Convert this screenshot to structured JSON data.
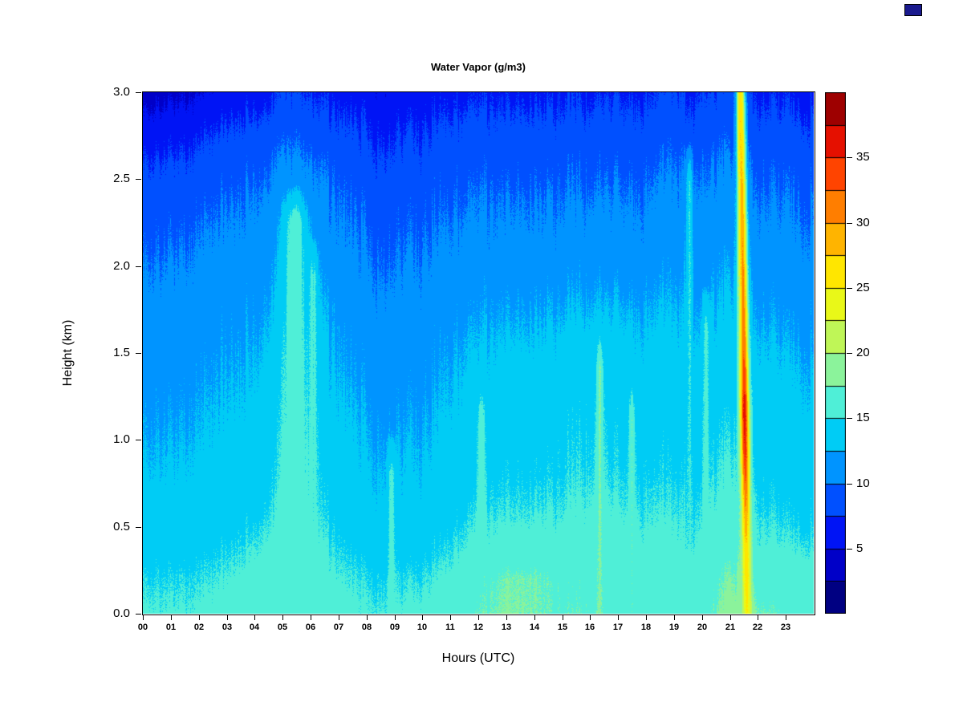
{
  "figure": {
    "background": "#ffffff"
  },
  "chart_data": {
    "type": "heatmap",
    "title": "Water Vapor (g/m3)",
    "xlabel": "Hours (UTC)",
    "ylabel": "Height (km)",
    "x_range_hours": [
      0,
      24
    ],
    "y_range_km": [
      0,
      3
    ],
    "x_tick_labels": [
      "00",
      "01",
      "02",
      "03",
      "04",
      "05",
      "06",
      "07",
      "08",
      "09",
      "10",
      "11",
      "12",
      "13",
      "14",
      "15",
      "16",
      "17",
      "18",
      "19",
      "20",
      "21",
      "22",
      "23"
    ],
    "y_tick_values": [
      0,
      0.5,
      1.0,
      1.5,
      2.0,
      2.5,
      3.0
    ],
    "y_tick_labels": [
      "0.0",
      "0.5",
      "1.0",
      "1.5",
      "2.0",
      "2.5",
      "3.0"
    ],
    "colorbar": {
      "min": 0,
      "max": 40,
      "bin_size": 2.5,
      "tick_values": [
        5,
        10,
        15,
        20,
        25,
        30,
        35
      ],
      "tick_labels": [
        "5",
        "10",
        "15",
        "20",
        "25",
        "30",
        "35"
      ],
      "colors": [
        "#000082",
        "#0000C8",
        "#0014F5",
        "#0050FF",
        "#0094FF",
        "#00CCF5",
        "#4FEFD7",
        "#8BF39B",
        "#BFF657",
        "#E9F818",
        "#FFE600",
        "#FFB400",
        "#FF7E00",
        "#FF4400",
        "#E51000",
        "#9E0000"
      ]
    },
    "grid": {
      "hours": [
        0,
        1,
        2,
        3,
        4,
        5,
        6,
        7,
        8,
        9,
        10,
        11,
        12,
        13,
        14,
        15,
        16,
        17,
        18,
        19,
        20,
        21,
        22,
        23,
        24
      ],
      "heights_km": [
        0.0,
        0.2,
        0.4,
        0.6,
        0.8,
        1.0,
        1.2,
        1.4,
        1.6,
        1.8,
        2.0,
        2.2,
        2.4,
        2.6,
        2.8,
        3.0
      ],
      "values": [
        [
          15.5,
          15.5,
          15.5,
          15.8,
          16.3,
          16.8,
          16.4,
          15.8,
          15.4,
          15.4,
          15.8,
          16.2,
          17.2,
          17.8,
          17.6,
          17.2,
          17.2,
          16.8,
          16.6,
          16.6,
          16.4,
          18.5,
          17.6,
          17.0,
          16.6
        ],
        [
          14.9,
          14.9,
          15.0,
          15.2,
          15.9,
          16.6,
          16.2,
          15.4,
          14.9,
          14.8,
          15.0,
          15.6,
          16.6,
          17.6,
          17.6,
          16.9,
          16.9,
          16.5,
          16.2,
          16.1,
          15.9,
          17.8,
          16.6,
          16.2,
          16.0
        ],
        [
          14.1,
          14.1,
          14.2,
          14.5,
          15.1,
          16.2,
          15.8,
          14.7,
          14.1,
          13.9,
          14.2,
          14.8,
          15.5,
          15.9,
          15.9,
          15.9,
          16.1,
          15.9,
          15.6,
          15.5,
          15.3,
          16.8,
          15.6,
          15.2,
          15.0
        ],
        [
          13.5,
          13.5,
          13.6,
          13.8,
          14.3,
          15.6,
          15.2,
          14.1,
          13.4,
          13.2,
          13.5,
          14.0,
          14.8,
          15.1,
          15.1,
          15.3,
          15.6,
          15.3,
          15.0,
          15.0,
          14.8,
          16.1,
          15.0,
          14.5,
          14.3
        ],
        [
          13.0,
          13.0,
          13.2,
          13.4,
          13.9,
          15.1,
          14.8,
          13.7,
          13.0,
          12.8,
          13.0,
          13.5,
          14.2,
          14.6,
          14.6,
          14.8,
          15.1,
          14.8,
          14.5,
          14.5,
          14.2,
          15.6,
          14.5,
          14.0,
          13.8
        ],
        [
          12.5,
          12.6,
          12.8,
          13.0,
          13.5,
          14.8,
          14.5,
          13.3,
          12.6,
          12.4,
          12.6,
          13.2,
          13.8,
          14.2,
          14.2,
          14.5,
          14.8,
          14.5,
          14.2,
          14.2,
          13.8,
          15.1,
          14.2,
          13.6,
          13.4
        ],
        [
          12.1,
          12.2,
          12.4,
          12.6,
          13.1,
          14.5,
          14.1,
          12.9,
          12.2,
          12.0,
          12.2,
          12.8,
          13.4,
          13.8,
          13.8,
          14.2,
          14.4,
          14.2,
          13.8,
          13.8,
          13.4,
          14.6,
          13.8,
          13.2,
          13.0
        ],
        [
          11.7,
          11.8,
          12.0,
          12.2,
          12.7,
          14.2,
          13.8,
          12.5,
          11.8,
          11.6,
          11.8,
          12.4,
          13.0,
          13.4,
          13.4,
          13.8,
          14.0,
          13.8,
          13.4,
          13.4,
          13.0,
          14.1,
          13.4,
          12.8,
          12.6
        ],
        [
          11.3,
          11.4,
          11.6,
          11.8,
          12.3,
          13.8,
          13.4,
          12.1,
          11.4,
          11.2,
          11.4,
          12.0,
          12.4,
          12.8,
          12.8,
          13.2,
          13.4,
          13.2,
          12.8,
          12.9,
          12.4,
          13.6,
          12.8,
          12.2,
          12.0
        ],
        [
          10.8,
          11.0,
          11.2,
          11.4,
          11.9,
          13.2,
          12.8,
          11.6,
          11.0,
          10.8,
          11.0,
          11.4,
          11.8,
          12.2,
          12.2,
          12.4,
          12.6,
          12.4,
          12.2,
          12.3,
          11.8,
          13.0,
          12.2,
          11.6,
          11.4
        ],
        [
          10.2,
          10.4,
          10.6,
          10.8,
          11.3,
          12.6,
          12.2,
          11.0,
          10.4,
          10.2,
          10.4,
          10.8,
          11.2,
          11.4,
          11.4,
          11.6,
          11.8,
          11.6,
          11.4,
          11.7,
          11.2,
          12.4,
          11.4,
          11.0,
          10.8
        ],
        [
          9.5,
          9.7,
          10.0,
          10.2,
          10.7,
          12.0,
          11.6,
          10.4,
          9.8,
          9.6,
          9.8,
          10.2,
          10.4,
          10.6,
          10.6,
          10.8,
          11.0,
          10.8,
          10.6,
          11.0,
          10.6,
          11.8,
          10.8,
          10.4,
          10.2
        ],
        [
          8.7,
          8.9,
          9.2,
          9.5,
          10.1,
          11.4,
          11.0,
          9.8,
          9.2,
          9.0,
          9.2,
          9.5,
          9.8,
          10.0,
          10.0,
          10.2,
          10.2,
          10.2,
          10.0,
          10.4,
          10.0,
          11.2,
          10.2,
          9.8,
          9.6
        ],
        [
          7.7,
          7.9,
          8.2,
          8.6,
          9.3,
          10.4,
          10.0,
          9.0,
          8.4,
          8.2,
          8.4,
          8.8,
          9.0,
          9.2,
          9.2,
          9.4,
          9.4,
          9.4,
          9.2,
          9.7,
          9.2,
          10.4,
          9.4,
          9.0,
          8.8
        ],
        [
          6.1,
          6.4,
          6.8,
          7.3,
          8.0,
          9.1,
          8.7,
          7.8,
          7.4,
          7.2,
          7.4,
          7.8,
          8.0,
          8.2,
          8.2,
          8.4,
          8.4,
          8.4,
          8.2,
          8.7,
          8.2,
          9.4,
          8.4,
          8.0,
          7.8
        ],
        [
          4.0,
          4.5,
          5.0,
          5.6,
          6.4,
          7.6,
          7.2,
          6.5,
          6.2,
          6.0,
          6.2,
          6.6,
          6.8,
          7.0,
          7.0,
          7.2,
          7.2,
          7.2,
          7.0,
          7.5,
          7.0,
          8.4,
          7.2,
          6.8,
          6.6
        ]
      ]
    },
    "plume": {
      "bottom_hour": 21.62,
      "top_hour": 21.38,
      "sigma_hours": 0.11,
      "peak_profile": [
        [
          0.0,
          25
        ],
        [
          0.4,
          27
        ],
        [
          0.7,
          31
        ],
        [
          0.9,
          34.5
        ],
        [
          1.15,
          36.5
        ],
        [
          1.5,
          32
        ],
        [
          2.0,
          30
        ],
        [
          2.4,
          28.5
        ],
        [
          2.8,
          27
        ],
        [
          3.0,
          26
        ]
      ]
    },
    "streaks": [
      {
        "hour": 5.45,
        "top_km": 2.5,
        "value": 16.3,
        "sigma": 0.28
      },
      {
        "hour": 6.1,
        "top_km": 2.2,
        "value": 15.6,
        "sigma": 0.12
      },
      {
        "hour": 8.9,
        "top_km": 1.05,
        "value": 15.9,
        "sigma": 0.1
      },
      {
        "hour": 12.1,
        "top_km": 1.35,
        "value": 16.4,
        "sigma": 0.09
      },
      {
        "hour": 16.35,
        "top_km": 1.65,
        "value": 17.7,
        "sigma": 0.08
      },
      {
        "hour": 17.5,
        "top_km": 1.35,
        "value": 17.1,
        "sigma": 0.07
      },
      {
        "hour": 19.55,
        "top_km": 2.75,
        "value": 15.3,
        "sigma": 0.09
      },
      {
        "hour": 20.15,
        "top_km": 1.9,
        "value": 15.6,
        "sigma": 0.08
      }
    ],
    "noise": {
      "column_amp": 0.86,
      "pixel_amp": 0.38
    }
  },
  "annotations": {
    "corner_artifact_color": "#1a1a8e"
  }
}
